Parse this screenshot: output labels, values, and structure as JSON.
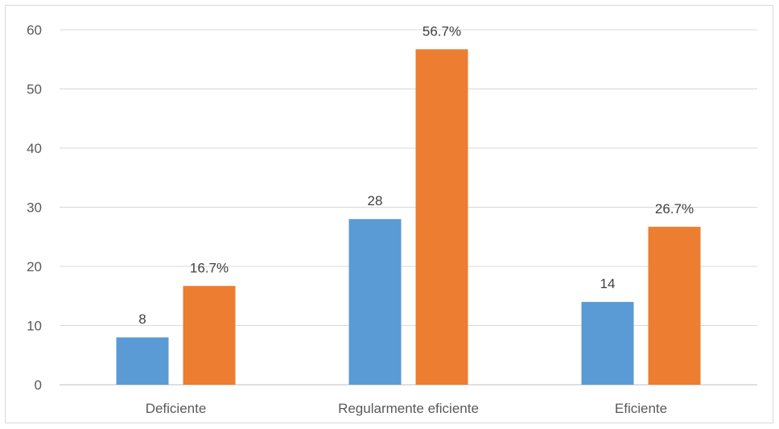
{
  "chart_data": {
    "type": "bar",
    "categories": [
      "Deficiente",
      "Regularmente eficiente",
      "Eficiente"
    ],
    "series": [
      {
        "values": [
          8,
          28,
          14
        ],
        "labels": [
          "8",
          "28",
          "14"
        ],
        "color": "#5b9bd5"
      },
      {
        "values": [
          16.7,
          56.7,
          26.7
        ],
        "labels": [
          "16.7%",
          "56.7%",
          "26.7%"
        ],
        "color": "#ed7d31"
      }
    ],
    "yticks": [
      "0",
      "10",
      "20",
      "30",
      "40",
      "50",
      "60"
    ],
    "ylim": [
      0,
      60
    ],
    "grid": true,
    "gridColor": "#d9d9d9",
    "axisColor": "#bfbfbf",
    "title": "",
    "xlabel": "",
    "ylabel": ""
  }
}
